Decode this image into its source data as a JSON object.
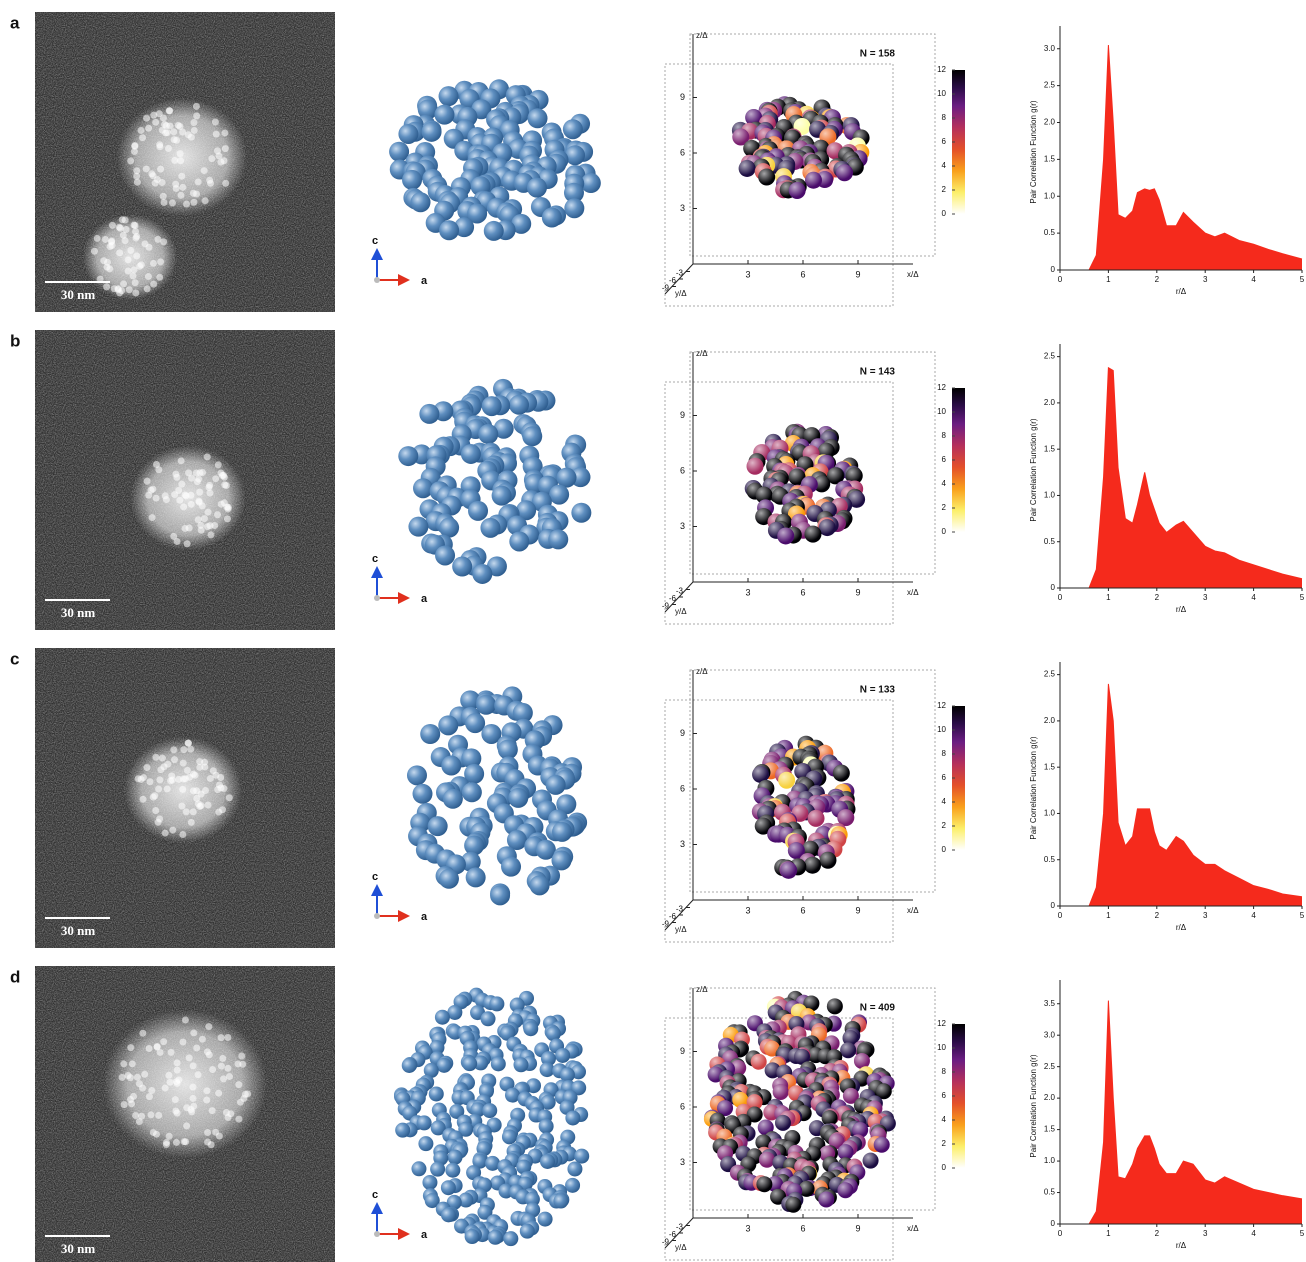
{
  "panels": [
    {
      "label": "a",
      "scale_bar": "30 nm",
      "n_label": "N = 158"
    },
    {
      "label": "b",
      "scale_bar": "30 nm",
      "n_label": "N = 143"
    },
    {
      "label": "c",
      "scale_bar": "30 nm",
      "n_label": "N = 133"
    },
    {
      "label": "d",
      "scale_bar": "30 nm",
      "n_label": "N = 409"
    }
  ],
  "crystal_axes": {
    "up": "c",
    "right": "a"
  },
  "scatter_axes": {
    "z_label": "z/Δ",
    "x_label": "x/Δ",
    "y_label": "y/Δ",
    "zlim": [
      0,
      12
    ],
    "z_ticks": [
      3,
      6,
      9
    ],
    "xlim": [
      0,
      12
    ],
    "x_ticks": [
      3,
      6,
      9
    ],
    "ylim": [
      -12,
      0
    ],
    "y_ticks": [
      -9,
      -6,
      -3
    ],
    "colorbar_lim": [
      0,
      12
    ],
    "colorbar_ticks": [
      0,
      2,
      4,
      6,
      8,
      10,
      12
    ]
  },
  "chart_data": [
    {
      "type": "area",
      "xlabel": "r/Δ",
      "ylabel": "Pair Correlation Function g(r)",
      "color": "#f52a1c",
      "x": [
        0,
        0.6,
        0.75,
        0.9,
        1.0,
        1.1,
        1.2,
        1.35,
        1.5,
        1.6,
        1.75,
        1.85,
        1.95,
        2.05,
        2.2,
        2.4,
        2.55,
        2.75,
        3.0,
        3.2,
        3.4,
        3.7,
        4.0,
        4.3,
        4.6,
        5.0
      ],
      "values": [
        0,
        0,
        0.2,
        1.5,
        3.05,
        2.0,
        0.75,
        0.7,
        0.8,
        1.05,
        1.1,
        1.08,
        1.1,
        0.95,
        0.6,
        0.6,
        0.78,
        0.65,
        0.5,
        0.45,
        0.5,
        0.4,
        0.35,
        0.28,
        0.22,
        0.15
      ],
      "xlim": [
        0,
        5
      ],
      "xticks": [
        0,
        1,
        2,
        3,
        4,
        5
      ],
      "ylim": [
        0,
        3.2
      ],
      "yticks": [
        0,
        0.5,
        {
          "value": 1,
          "label": "1.0"
        },
        1.5,
        {
          "value": 2,
          "label": "2.0"
        },
        2.5,
        {
          "value": 3,
          "label": "3.0"
        }
      ]
    },
    {
      "type": "area",
      "xlabel": "r/Δ",
      "ylabel": "Pair Correlation Function g(r)",
      "color": "#f52a1c",
      "x": [
        0,
        0.6,
        0.75,
        0.9,
        1.0,
        1.1,
        1.2,
        1.35,
        1.5,
        1.6,
        1.75,
        1.85,
        1.95,
        2.05,
        2.2,
        2.4,
        2.55,
        2.75,
        3.0,
        3.2,
        3.4,
        3.7,
        4.0,
        4.3,
        4.6,
        5.0
      ],
      "values": [
        0,
        0,
        0.2,
        1.2,
        2.38,
        2.35,
        1.3,
        0.75,
        0.7,
        0.9,
        1.25,
        1.0,
        0.85,
        0.7,
        0.6,
        0.68,
        0.72,
        0.6,
        0.45,
        0.4,
        0.38,
        0.3,
        0.25,
        0.2,
        0.15,
        0.1
      ],
      "xlim": [
        0,
        5
      ],
      "xticks": [
        0,
        1,
        2,
        3,
        4,
        5
      ],
      "ylim": [
        0,
        2.55
      ],
      "yticks": [
        0,
        0.5,
        {
          "value": 1,
          "label": "1.0"
        },
        1.5,
        {
          "value": 2,
          "label": "2.0"
        },
        2.5
      ]
    },
    {
      "type": "area",
      "xlabel": "r/Δ",
      "ylabel": "Pair Correlation Function g(r)",
      "color": "#f52a1c",
      "x": [
        0,
        0.6,
        0.75,
        0.9,
        1.0,
        1.1,
        1.2,
        1.35,
        1.5,
        1.6,
        1.75,
        1.85,
        1.95,
        2.05,
        2.2,
        2.4,
        2.55,
        2.75,
        3.0,
        3.2,
        3.4,
        3.7,
        4.0,
        4.3,
        4.6,
        5.0
      ],
      "values": [
        0,
        0,
        0.2,
        1.0,
        2.4,
        2.0,
        0.9,
        0.65,
        0.75,
        1.05,
        1.05,
        1.05,
        0.8,
        0.65,
        0.6,
        0.75,
        0.7,
        0.55,
        0.45,
        0.45,
        0.38,
        0.3,
        0.22,
        0.18,
        0.13,
        0.1
      ],
      "xlim": [
        0,
        5
      ],
      "xticks": [
        0,
        1,
        2,
        3,
        4,
        5
      ],
      "ylim": [
        0,
        2.55
      ],
      "yticks": [
        0,
        0.5,
        {
          "value": 1,
          "label": "1.0"
        },
        1.5,
        {
          "value": 2,
          "label": "2.0"
        },
        2.5
      ]
    },
    {
      "type": "area",
      "xlabel": "r/Δ",
      "ylabel": "Pair Correlation Function g(r)",
      "color": "#f52a1c",
      "x": [
        0,
        0.6,
        0.75,
        0.9,
        1.0,
        1.1,
        1.2,
        1.35,
        1.5,
        1.6,
        1.75,
        1.85,
        1.95,
        2.05,
        2.2,
        2.4,
        2.55,
        2.75,
        3.0,
        3.2,
        3.4,
        3.7,
        4.0,
        4.3,
        4.6,
        5.0
      ],
      "values": [
        0,
        0,
        0.2,
        1.3,
        3.55,
        2.0,
        0.75,
        0.72,
        0.95,
        1.2,
        1.4,
        1.4,
        1.2,
        0.95,
        0.8,
        0.8,
        1.0,
        0.95,
        0.7,
        0.65,
        0.75,
        0.65,
        0.55,
        0.5,
        0.45,
        0.4
      ],
      "xlim": [
        0,
        5
      ],
      "xticks": [
        0,
        1,
        2,
        3,
        4,
        5
      ],
      "ylim": [
        0,
        3.75
      ],
      "yticks": [
        0,
        0.5,
        {
          "value": 1,
          "label": "1.0"
        },
        1.5,
        {
          "value": 2,
          "label": "2.0"
        },
        2.5,
        {
          "value": 3,
          "label": "3.0"
        },
        3.5
      ]
    }
  ]
}
